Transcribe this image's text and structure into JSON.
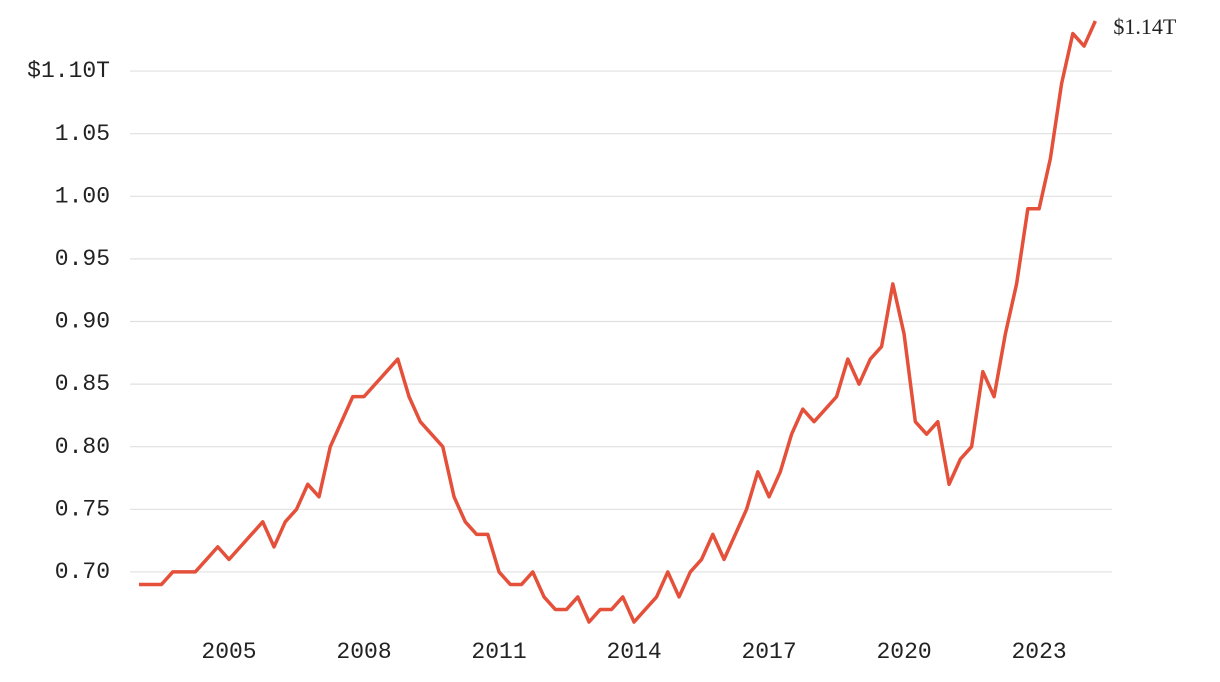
{
  "chart_data": {
    "type": "line",
    "x": [
      2003,
      2003.25,
      2003.5,
      2003.75,
      2004,
      2004.25,
      2004.5,
      2004.75,
      2005,
      2005.25,
      2005.5,
      2005.75,
      2006,
      2006.25,
      2006.5,
      2006.75,
      2007,
      2007.25,
      2007.5,
      2007.75,
      2008,
      2008.25,
      2008.5,
      2008.75,
      2009,
      2009.25,
      2009.5,
      2009.75,
      2010,
      2010.25,
      2010.5,
      2010.75,
      2011,
      2011.25,
      2011.5,
      2011.75,
      2012,
      2012.25,
      2012.5,
      2012.75,
      2013,
      2013.25,
      2013.5,
      2013.75,
      2014,
      2014.25,
      2014.5,
      2014.75,
      2015,
      2015.25,
      2015.5,
      2015.75,
      2016,
      2016.25,
      2016.5,
      2016.75,
      2017,
      2017.25,
      2017.5,
      2017.75,
      2018,
      2018.25,
      2018.5,
      2018.75,
      2019,
      2019.25,
      2019.5,
      2019.75,
      2020,
      2020.25,
      2020.5,
      2020.75,
      2021,
      2021.25,
      2021.5,
      2021.75,
      2022,
      2022.25,
      2022.5,
      2022.75,
      2023,
      2023.25,
      2023.5,
      2023.75,
      2024,
      2024.25
    ],
    "series": [
      {
        "color": "#e4503a",
        "values": [
          0.69,
          0.69,
          0.69,
          0.7,
          0.7,
          0.7,
          0.71,
          0.72,
          0.71,
          0.72,
          0.73,
          0.74,
          0.72,
          0.74,
          0.75,
          0.77,
          0.76,
          0.8,
          0.82,
          0.84,
          0.84,
          0.85,
          0.86,
          0.87,
          0.84,
          0.82,
          0.81,
          0.8,
          0.76,
          0.74,
          0.73,
          0.73,
          0.7,
          0.69,
          0.69,
          0.7,
          0.68,
          0.67,
          0.67,
          0.68,
          0.66,
          0.67,
          0.67,
          0.68,
          0.66,
          0.67,
          0.68,
          0.7,
          0.68,
          0.7,
          0.71,
          0.73,
          0.71,
          0.73,
          0.75,
          0.78,
          0.76,
          0.78,
          0.81,
          0.83,
          0.82,
          0.83,
          0.84,
          0.87,
          0.85,
          0.87,
          0.88,
          0.93,
          0.89,
          0.82,
          0.81,
          0.82,
          0.77,
          0.79,
          0.8,
          0.86,
          0.84,
          0.89,
          0.93,
          0.99,
          0.99,
          1.03,
          1.09,
          1.13,
          1.12,
          1.14
        ]
      }
    ],
    "end_label": "$1.14T",
    "xlim": [
      2002.8,
      2024.62
    ],
    "xticks": [
      2005,
      2008,
      2011,
      2014,
      2017,
      2020,
      2023
    ],
    "ylim": [
      0.66,
      1.14
    ],
    "yticks": [
      {
        "value": 0.7,
        "label": "0.70"
      },
      0.75,
      {
        "value": 0.8,
        "label": "0.80"
      },
      0.85,
      {
        "value": 0.9,
        "label": "0.90"
      },
      0.95,
      {
        "value": 1.0,
        "label": "1.00"
      },
      1.05,
      {
        "value": 1.1,
        "label": "$1.10T"
      }
    ],
    "grid": true
  }
}
